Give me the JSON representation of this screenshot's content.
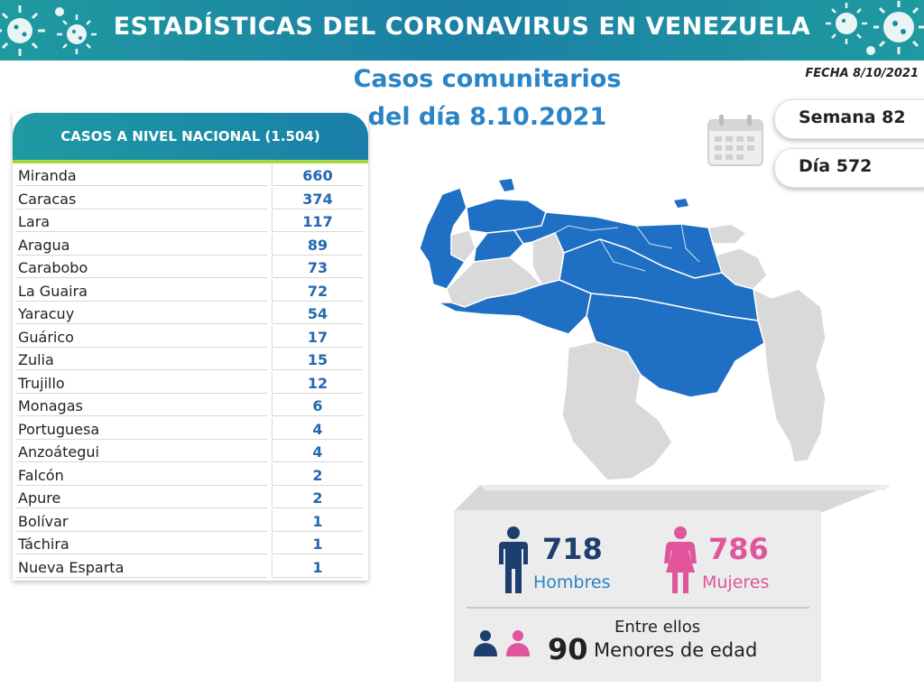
{
  "banner": {
    "title": "ESTADÍSTICAS DEL CORONAVIRUS EN VENEZUELA"
  },
  "subtitle": {
    "line1": "Casos comunitarios",
    "line2": "del día 8.10.2021"
  },
  "date_label": "FECHA 8/10/2021",
  "week_label": "Semana 82",
  "day_label": "Día 572",
  "table": {
    "header": "CASOS A NIVEL NACIONAL (1.504)",
    "rows": [
      {
        "name": "Miranda",
        "value": "660"
      },
      {
        "name": "Caracas",
        "value": "374"
      },
      {
        "name": "Lara",
        "value": "117"
      },
      {
        "name": "Aragua",
        "value": "89"
      },
      {
        "name": "Carabobo",
        "value": "73"
      },
      {
        "name": "La Guaira",
        "value": "72"
      },
      {
        "name": "Yaracuy",
        "value": "54"
      },
      {
        "name": "Guárico",
        "value": "17"
      },
      {
        "name": "Zulia",
        "value": "15"
      },
      {
        "name": "Trujillo",
        "value": "12"
      },
      {
        "name": "Monagas",
        "value": "6"
      },
      {
        "name": "Portuguesa",
        "value": "4"
      },
      {
        "name": "Anzoátegui",
        "value": "4"
      },
      {
        "name": "Falcón",
        "value": "2"
      },
      {
        "name": "Apure",
        "value": "2"
      },
      {
        "name": "Bolívar",
        "value": "1"
      },
      {
        "name": "Táchira",
        "value": "1"
      },
      {
        "name": "Nueva Esparta",
        "value": "1"
      }
    ]
  },
  "gender": {
    "men_count": "718",
    "men_label": "Hombres",
    "women_count": "786",
    "women_label": "Mujeres"
  },
  "minors": {
    "prefix": "Entre ellos",
    "count": "90",
    "label": "Menores de edad"
  },
  "colors": {
    "banner": "#1b8aa5",
    "accent_green": "#a6d640",
    "map_affected": "#1f6fc4",
    "map_unaffected": "#d9d9d9",
    "men": "#1c3f6e",
    "women": "#e0559b",
    "value_blue": "#2468b0"
  },
  "icons": [
    "virus-icon",
    "calendar-icon",
    "man-icon",
    "woman-icon",
    "child-icons"
  ]
}
